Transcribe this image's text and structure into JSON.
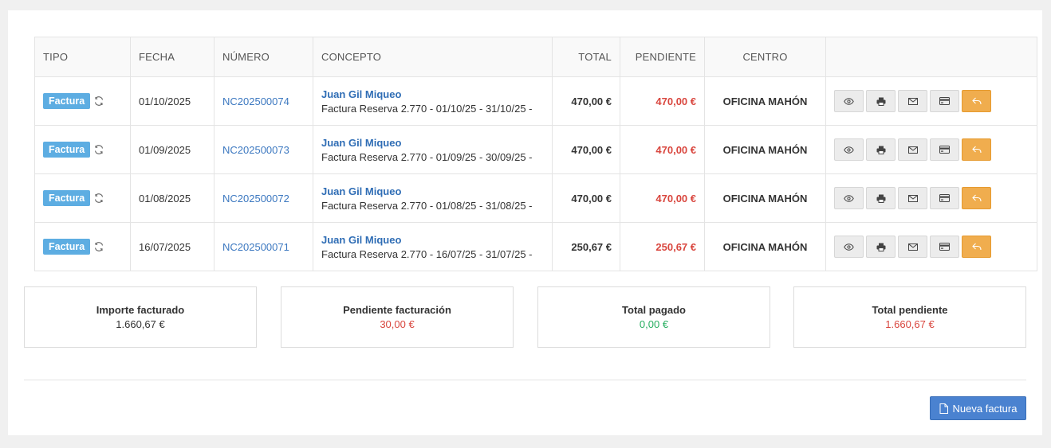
{
  "table": {
    "headers": {
      "tipo": "TIPO",
      "fecha": "FECHA",
      "numero": "NÚMERO",
      "concepto": "CONCEPTO",
      "total": "TOTAL",
      "pendiente": "PENDIENTE",
      "centro": "CENTRO"
    },
    "rows": [
      {
        "tipo": "Factura",
        "fecha": "01/10/2025",
        "numero": "NC202500074",
        "cliente": "Juan Gil Miqueo",
        "concepto": "Factura Reserva 2.770 - 01/10/25 - 31/10/25 -",
        "total": "470,00 €",
        "pendiente": "470,00 €",
        "centro": "OFICINA MAHÓN"
      },
      {
        "tipo": "Factura",
        "fecha": "01/09/2025",
        "numero": "NC202500073",
        "cliente": "Juan Gil Miqueo",
        "concepto": "Factura Reserva 2.770 - 01/09/25 - 30/09/25 -",
        "total": "470,00 €",
        "pendiente": "470,00 €",
        "centro": "OFICINA MAHÓN"
      },
      {
        "tipo": "Factura",
        "fecha": "01/08/2025",
        "numero": "NC202500072",
        "cliente": "Juan Gil Miqueo",
        "concepto": "Factura Reserva 2.770 - 01/08/25 - 31/08/25 -",
        "total": "470,00 €",
        "pendiente": "470,00 €",
        "centro": "OFICINA MAHÓN"
      },
      {
        "tipo": "Factura",
        "fecha": "16/07/2025",
        "numero": "NC202500071",
        "cliente": "Juan Gil Miqueo",
        "concepto": "Factura Reserva 2.770 - 16/07/25 - 31/07/25 -",
        "total": "250,67 €",
        "pendiente": "250,67 €",
        "centro": "OFICINA MAHÓN"
      }
    ],
    "row_actions": [
      "eye-icon",
      "print-icon",
      "envelope-icon",
      "credit-card-icon",
      "reply-icon"
    ]
  },
  "summary": {
    "facturado": {
      "label": "Importe facturado",
      "value": "1.660,67 €"
    },
    "pendiente_facturacion": {
      "label": "Pendiente facturación",
      "value": "30,00 €"
    },
    "pagado": {
      "label": "Total pagado",
      "value": "0,00 €"
    },
    "total_pendiente": {
      "label": "Total pendiente",
      "value": "1.660,67 €"
    }
  },
  "footer": {
    "new_invoice_label": "Nueva factura"
  },
  "colors": {
    "badge": "#5dade2",
    "link": "#3c78c0",
    "red": "#d9463e",
    "green": "#27ae60",
    "orange": "#f0ad4e",
    "primary": "#4a82d0"
  }
}
